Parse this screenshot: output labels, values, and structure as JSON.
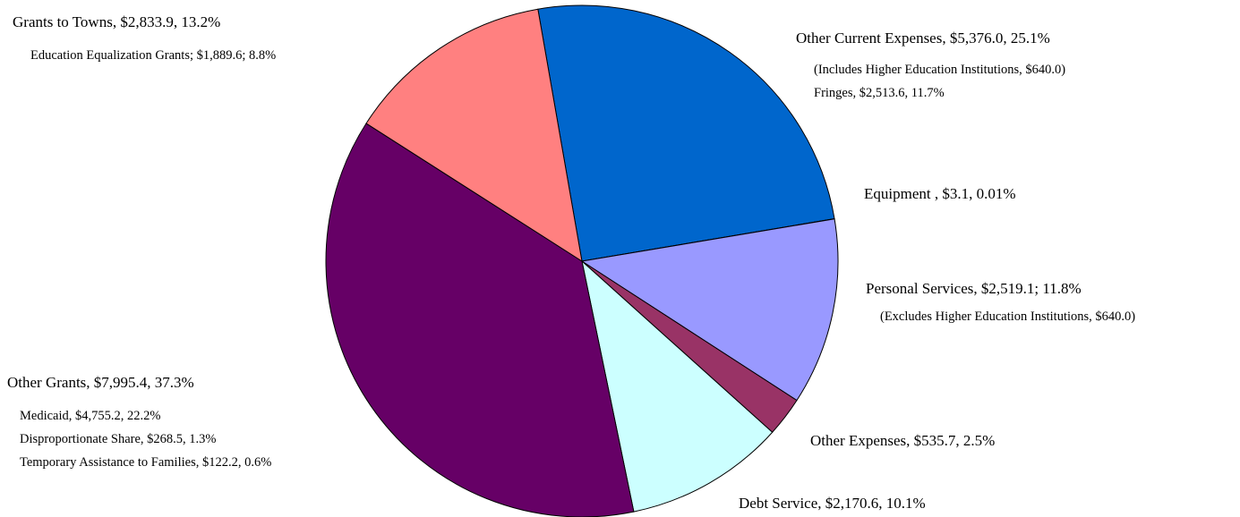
{
  "chart_data": {
    "type": "pie",
    "categories": [
      "Other Current Expenses",
      "Equipment",
      "Personal Services",
      "Other Expenses",
      "Debt Service",
      "Other Grants",
      "Grants to Towns"
    ],
    "values": [
      25.1,
      0.01,
      11.8,
      2.5,
      10.1,
      37.3,
      13.2
    ],
    "value_labels": [
      "Other Current Expenses, $5,376.0, 25.1%",
      "Equipment , $3.1, 0.01%",
      "Personal Services, $2,519.1; 11.8%",
      "Other Expenses, $535.7, 2.5%",
      "Debt Service, $2,170.6, 10.1%",
      "Other Grants, $7,995.4, 37.3%",
      "Grants to Towns, $2,833.9, 13.2%"
    ],
    "colors": [
      "#0066cc",
      "#ffffcc",
      "#9999ff",
      "#993366",
      "#ccffff",
      "#660066",
      "#ff8080"
    ],
    "annotations": [
      "(Includes Higher Education Institutions, $640.0)",
      "Fringes, $2,513.6, 11.7%",
      "(Excludes Higher Education Institutions, $640.0)",
      "Medicaid, $4,755.2, 22.2%",
      "Disproportionate Share, $268.5, 1.3%",
      "Temporary Assistance to Families, $122.2, 0.6%",
      "Education Equalization Grants; $1,889.6; 8.8%"
    ]
  }
}
